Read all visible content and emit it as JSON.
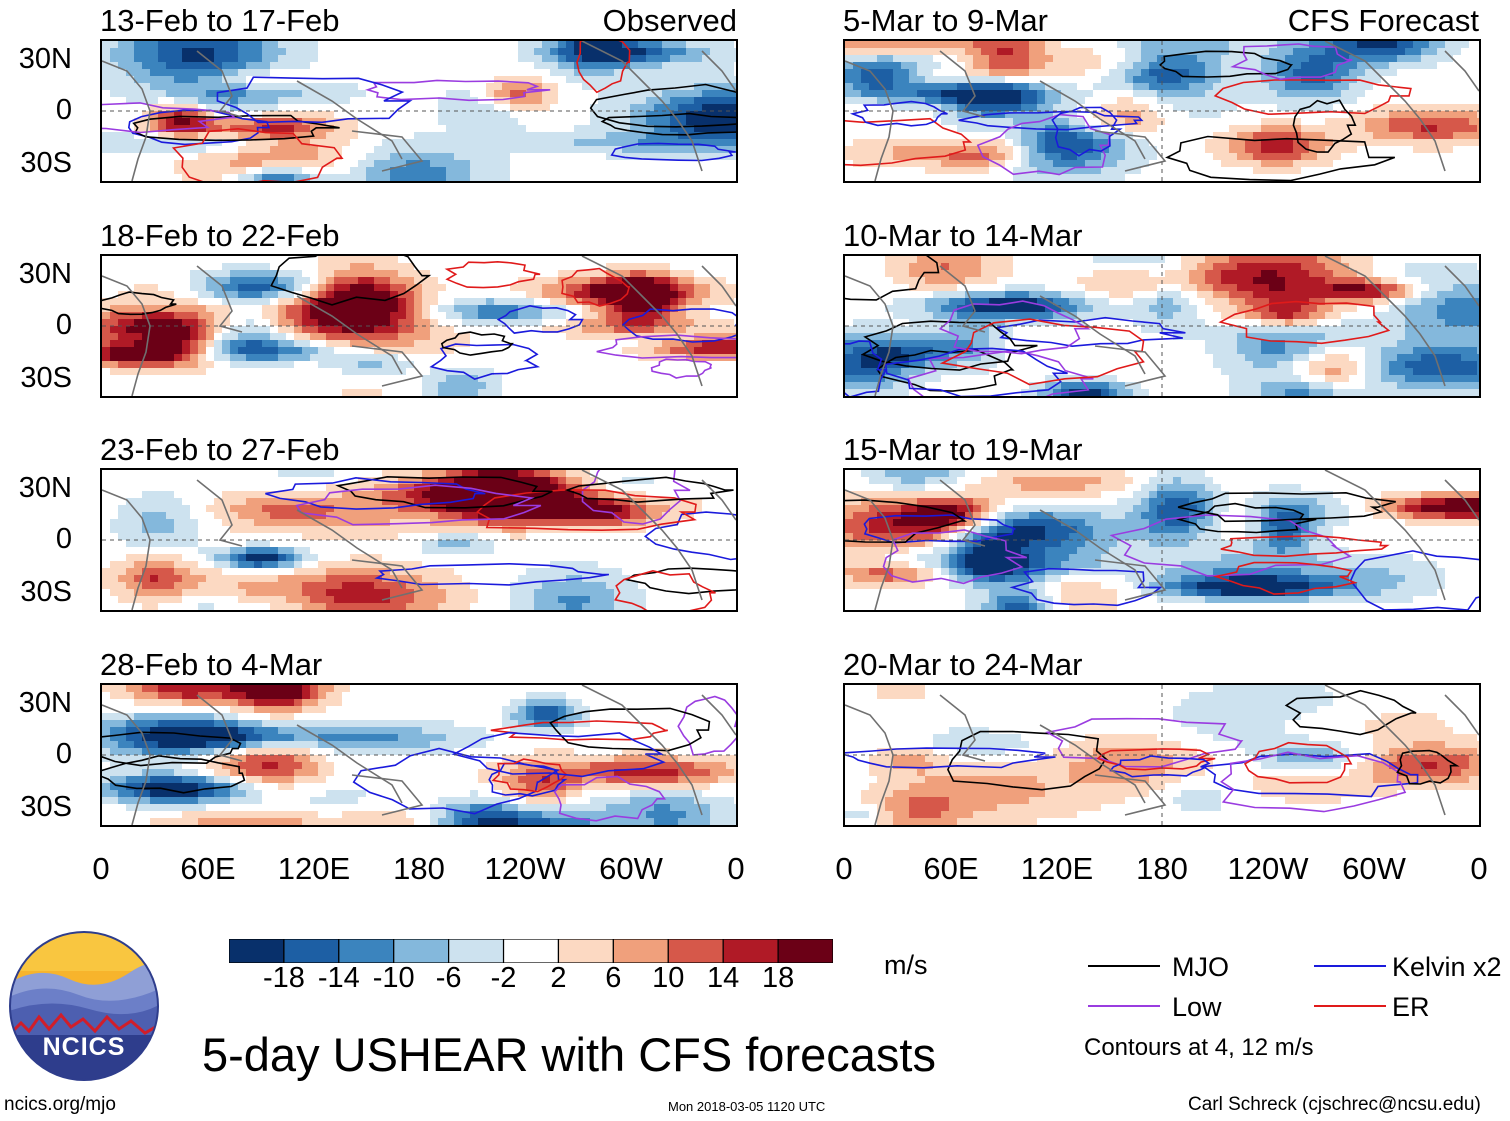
{
  "observed_label": "Observed",
  "forecast_label": "CFS Forecast",
  "main_title": "5-day USHEAR with CFS forecasts",
  "units": "m/s",
  "footer": {
    "left": "ncics.org/mjo",
    "center": "Mon 2018-03-05 1120 UTC",
    "right": "Carl Schreck (cjschrec@ncsu.edu)"
  },
  "logo_text": "NCICS",
  "legend": {
    "contours_note": "Contours at 4, 12 m/s",
    "items": [
      {
        "label": "MJO",
        "color": "#000000"
      },
      {
        "label": "Kelvin x2",
        "color": "#1a1adc"
      },
      {
        "label": "Low",
        "color": "#9a3ce0"
      },
      {
        "label": "ER",
        "color": "#e01a1a"
      }
    ]
  },
  "chart_data": {
    "type": "heatmap",
    "variable": "USHEAR anomaly",
    "units": "m/s",
    "colorbar": {
      "levels": [
        -18,
        -14,
        -10,
        -6,
        -2,
        2,
        6,
        10,
        14,
        18
      ],
      "level_labels": [
        "-18",
        "-14",
        "-10",
        "-6",
        "-2",
        "2",
        "6",
        "10",
        "14",
        "18"
      ],
      "colors": [
        "#08306b",
        "#1d5fa4",
        "#3b84be",
        "#84b8dc",
        "#cde2ef",
        "#ffffff",
        "#fcd9c2",
        "#f0a07c",
        "#d6584a",
        "#b01a26",
        "#6b0016"
      ]
    },
    "x_ticks": [
      "0",
      "60E",
      "120E",
      "180",
      "120W",
      "60W",
      "0"
    ],
    "y_ticks": [
      "30N",
      "0",
      "30S"
    ],
    "contours_m_s": [
      4,
      12
    ],
    "panels": [
      {
        "period": "13-Feb to 17-Feb",
        "source": "Observed",
        "seed": 11
      },
      {
        "period": "18-Feb to 22-Feb",
        "source": "Observed",
        "seed": 23
      },
      {
        "period": "23-Feb to 27-Feb",
        "source": "Observed",
        "seed": 37
      },
      {
        "period": "28-Feb to 4-Mar",
        "source": "Observed",
        "seed": 41
      },
      {
        "period": "5-Mar to 9-Mar",
        "source": "CFS Forecast",
        "seed": 53
      },
      {
        "period": "10-Mar to 14-Mar",
        "source": "CFS Forecast",
        "seed": 67
      },
      {
        "period": "15-Mar to 19-Mar",
        "source": "CFS Forecast",
        "seed": 79
      },
      {
        "period": "20-Mar to 24-Mar",
        "source": "CFS Forecast",
        "seed": 83
      }
    ]
  }
}
